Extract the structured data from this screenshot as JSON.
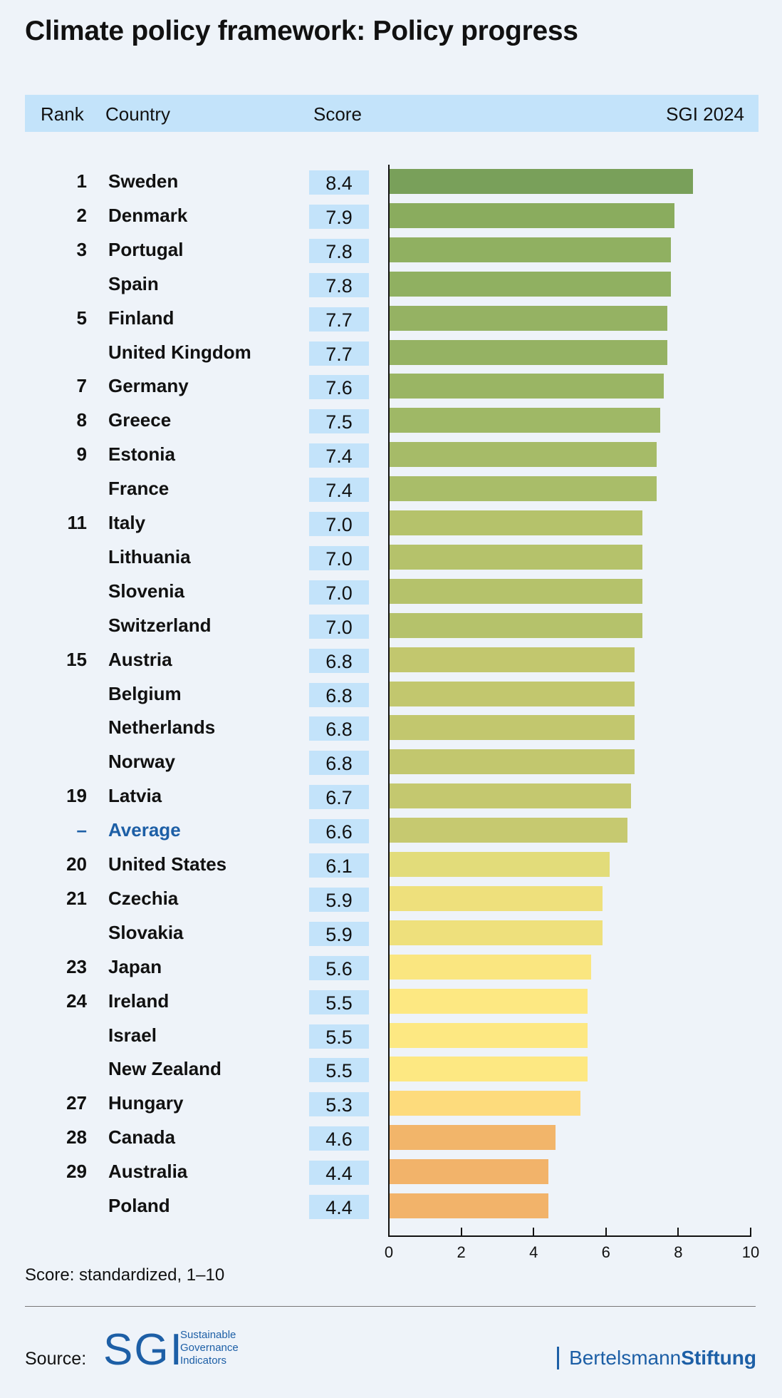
{
  "title": "Climate policy framework: Policy progress",
  "header": {
    "rank": "Rank",
    "country": "Country",
    "score": "Score",
    "index": "SGI 2024"
  },
  "chart_data": {
    "type": "bar",
    "orientation": "horizontal",
    "xlim": [
      0,
      10
    ],
    "xticks": [
      0,
      2,
      4,
      6,
      8,
      10
    ],
    "rows": [
      {
        "rank": "1",
        "country": "Sweden",
        "score": "8.4",
        "value": 8.4,
        "color": "#79a05a"
      },
      {
        "rank": "2",
        "country": "Denmark",
        "score": "7.9",
        "value": 7.9,
        "color": "#8aac5e"
      },
      {
        "rank": "3",
        "country": "Portugal",
        "score": "7.8",
        "value": 7.8,
        "color": "#90b061"
      },
      {
        "rank": "",
        "country": "Spain",
        "score": "7.8",
        "value": 7.8,
        "color": "#90b061"
      },
      {
        "rank": "5",
        "country": "Finland",
        "score": "7.7",
        "value": 7.7,
        "color": "#95b263"
      },
      {
        "rank": "",
        "country": "United Kingdom",
        "score": "7.7",
        "value": 7.7,
        "color": "#95b263"
      },
      {
        "rank": "7",
        "country": "Germany",
        "score": "7.6",
        "value": 7.6,
        "color": "#9ab564"
      },
      {
        "rank": "8",
        "country": "Greece",
        "score": "7.5",
        "value": 7.5,
        "color": "#9fb866"
      },
      {
        "rank": "9",
        "country": "Estonia",
        "score": "7.4",
        "value": 7.4,
        "color": "#a6bb68"
      },
      {
        "rank": "",
        "country": "France",
        "score": "7.4",
        "value": 7.4,
        "color": "#a9bd69"
      },
      {
        "rank": "11",
        "country": "Italy",
        "score": "7.0",
        "value": 7.0,
        "color": "#b5c26b"
      },
      {
        "rank": "",
        "country": "Lithuania",
        "score": "7.0",
        "value": 7.0,
        "color": "#b5c26b"
      },
      {
        "rank": "",
        "country": "Slovenia",
        "score": "7.0",
        "value": 7.0,
        "color": "#b5c26b"
      },
      {
        "rank": "",
        "country": "Switzerland",
        "score": "7.0",
        "value": 7.0,
        "color": "#b5c26b"
      },
      {
        "rank": "15",
        "country": "Austria",
        "score": "6.8",
        "value": 6.8,
        "color": "#c2c76e"
      },
      {
        "rank": "",
        "country": "Belgium",
        "score": "6.8",
        "value": 6.8,
        "color": "#c2c76e"
      },
      {
        "rank": "",
        "country": "Netherlands",
        "score": "6.8",
        "value": 6.8,
        "color": "#c2c76e"
      },
      {
        "rank": "",
        "country": "Norway",
        "score": "6.8",
        "value": 6.8,
        "color": "#c2c76e"
      },
      {
        "rank": "19",
        "country": "Latvia",
        "score": "6.7",
        "value": 6.7,
        "color": "#c4c86f"
      },
      {
        "rank": "–",
        "country": "Average",
        "score": "6.6",
        "value": 6.6,
        "color": "#c6c970",
        "highlight": true
      },
      {
        "rank": "20",
        "country": "United States",
        "score": "6.1",
        "value": 6.1,
        "color": "#e2dc7a"
      },
      {
        "rank": "21",
        "country": "Czechia",
        "score": "5.9",
        "value": 5.9,
        "color": "#eee07c"
      },
      {
        "rank": "",
        "country": "Slovakia",
        "score": "5.9",
        "value": 5.9,
        "color": "#eee07c"
      },
      {
        "rank": "23",
        "country": "Japan",
        "score": "5.6",
        "value": 5.6,
        "color": "#fae680"
      },
      {
        "rank": "24",
        "country": "Ireland",
        "score": "5.5",
        "value": 5.5,
        "color": "#fde882"
      },
      {
        "rank": "",
        "country": "Israel",
        "score": "5.5",
        "value": 5.5,
        "color": "#fde882"
      },
      {
        "rank": "",
        "country": "New Zealand",
        "score": "5.5",
        "value": 5.5,
        "color": "#fde882"
      },
      {
        "rank": "27",
        "country": "Hungary",
        "score": "5.3",
        "value": 5.3,
        "color": "#fddb7c"
      },
      {
        "rank": "28",
        "country": "Canada",
        "score": "4.6",
        "value": 4.6,
        "color": "#f2b56a"
      },
      {
        "rank": "29",
        "country": "Australia",
        "score": "4.4",
        "value": 4.4,
        "color": "#f2b36a"
      },
      {
        "rank": "",
        "country": "Poland",
        "score": "4.4",
        "value": 4.4,
        "color": "#f2b36a"
      }
    ]
  },
  "footnote": "Score: standardized, 1–10",
  "source_label": "Source:",
  "sgi_logo": {
    "letters": "SGI",
    "line1": "Sustainable",
    "line2": "Governance",
    "line3": "Indicators"
  },
  "publisher": {
    "part1": "Bertelsmann",
    "part2": "Stiftung"
  },
  "colors": {
    "header_bg": "#c3e3fa",
    "accent": "#1d5fa6"
  }
}
